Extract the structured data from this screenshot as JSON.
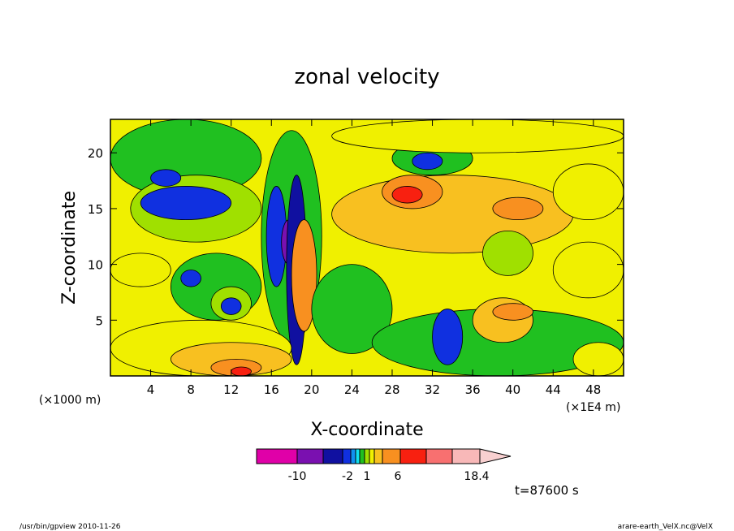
{
  "chart_data": {
    "type": "heatmap",
    "title": "zonal velocity",
    "xlabel": "X-coordinate",
    "ylabel": "Z-coordinate",
    "x_unit_left": "(×1000 m)",
    "x_unit_right": "(×1E4 m)",
    "xlim": [
      0,
      51
    ],
    "ylim": [
      0,
      23
    ],
    "x_ticks": [
      4,
      8,
      12,
      16,
      20,
      24,
      28,
      32,
      36,
      40,
      44,
      48
    ],
    "y_ticks": [
      5,
      10,
      15,
      20
    ],
    "time_label": "t=87600 s",
    "colorbar": {
      "colors": [
        "#e000a8",
        "#7a10b0",
        "#1010a0",
        "#1030e0",
        "#1090f0",
        "#10e0f0",
        "#20c020",
        "#a0e000",
        "#f0f000",
        "#f8c020",
        "#f89020",
        "#f82010",
        "#f87070",
        "#f8b8b8"
      ],
      "labels": [
        "-10",
        "-2",
        "1",
        "6",
        "18.4"
      ]
    },
    "regions": [
      {
        "x": 0,
        "z": 0,
        "w": 51,
        "h": 23,
        "level": 8
      },
      {
        "x": 0,
        "z": 16,
        "w": 15,
        "h": 7,
        "level": 6
      },
      {
        "x": 2,
        "z": 12,
        "w": 13,
        "h": 6,
        "level": 7
      },
      {
        "x": 3,
        "z": 14,
        "w": 9,
        "h": 3,
        "level": 3
      },
      {
        "x": 4,
        "z": 17,
        "w": 3,
        "h": 1.5,
        "level": 3
      },
      {
        "x": 6,
        "z": 5,
        "w": 9,
        "h": 6,
        "level": 6
      },
      {
        "x": 10,
        "z": 5,
        "w": 4,
        "h": 3,
        "level": 7
      },
      {
        "x": 11,
        "z": 5.5,
        "w": 2,
        "h": 1.5,
        "level": 3
      },
      {
        "x": 7,
        "z": 8,
        "w": 2,
        "h": 1.5,
        "level": 3
      },
      {
        "x": 15,
        "z": 3,
        "w": 6,
        "h": 19,
        "level": 6
      },
      {
        "x": 15.5,
        "z": 8,
        "w": 2,
        "h": 9,
        "level": 3
      },
      {
        "x": 17,
        "z": 10,
        "w": 1.5,
        "h": 4,
        "level": 1
      },
      {
        "x": 17.5,
        "z": 1,
        "w": 2,
        "h": 17,
        "level": 2
      },
      {
        "x": 18,
        "z": 4,
        "w": 2.5,
        "h": 10,
        "level": 10
      },
      {
        "x": 20,
        "z": 2,
        "w": 8,
        "h": 8,
        "level": 6
      },
      {
        "x": 22,
        "z": 11,
        "w": 24,
        "h": 7,
        "level": 9
      },
      {
        "x": 27,
        "z": 15,
        "w": 6,
        "h": 3,
        "level": 10
      },
      {
        "x": 28,
        "z": 15.5,
        "w": 3,
        "h": 1.5,
        "level": 11
      },
      {
        "x": 38,
        "z": 14,
        "w": 5,
        "h": 2,
        "level": 10
      },
      {
        "x": 28,
        "z": 18,
        "w": 8,
        "h": 3,
        "level": 6
      },
      {
        "x": 30,
        "z": 18.5,
        "w": 3,
        "h": 1.5,
        "level": 3
      },
      {
        "x": 22,
        "z": 20,
        "w": 29,
        "h": 3,
        "level": 8
      },
      {
        "x": 26,
        "z": 0,
        "w": 25,
        "h": 6,
        "level": 6
      },
      {
        "x": 32,
        "z": 1,
        "w": 3,
        "h": 5,
        "level": 3
      },
      {
        "x": 36,
        "z": 3,
        "w": 6,
        "h": 4,
        "level": 9
      },
      {
        "x": 38,
        "z": 5,
        "w": 4,
        "h": 1.5,
        "level": 10
      },
      {
        "x": 44,
        "z": 7,
        "w": 7,
        "h": 5,
        "level": 8
      },
      {
        "x": 37,
        "z": 9,
        "w": 5,
        "h": 4,
        "level": 7
      },
      {
        "x": 44,
        "z": 14,
        "w": 7,
        "h": 5,
        "level": 8
      },
      {
        "x": 0,
        "z": 0,
        "w": 18,
        "h": 5,
        "level": 8
      },
      {
        "x": 6,
        "z": 0,
        "w": 12,
        "h": 3,
        "level": 9
      },
      {
        "x": 10,
        "z": 0,
        "w": 5,
        "h": 1.5,
        "level": 10
      },
      {
        "x": 12,
        "z": 0,
        "w": 2,
        "h": 0.8,
        "level": 11
      },
      {
        "x": 0,
        "z": 8,
        "w": 6,
        "h": 3,
        "level": 8
      },
      {
        "x": 46,
        "z": 0,
        "w": 5,
        "h": 3,
        "level": 8
      }
    ]
  },
  "footer": {
    "left": "/usr/bin/gpview   2010-11-26",
    "right": "arare-earth_VelX.nc@VelX"
  }
}
